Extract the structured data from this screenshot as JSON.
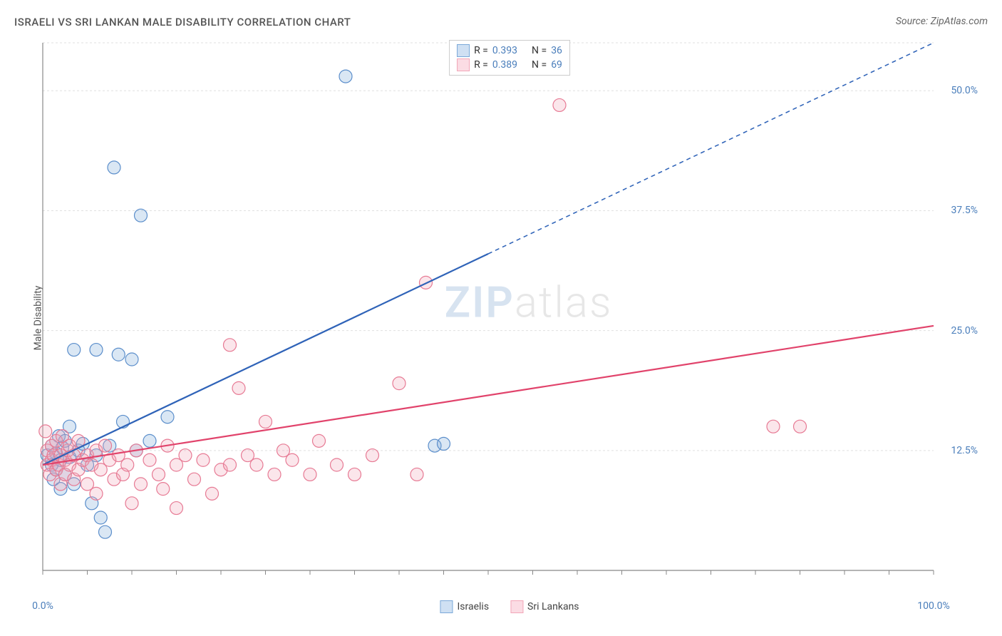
{
  "title": "ISRAELI VS SRI LANKAN MALE DISABILITY CORRELATION CHART",
  "source": "Source: ZipAtlas.com",
  "ylabel": "Male Disability",
  "watermark": {
    "part1": "ZIP",
    "part2": "atlas"
  },
  "chart": {
    "type": "scatter",
    "background_color": "#ffffff",
    "grid_color": "#e0e0e0",
    "axis_color": "#888888",
    "tick_color": "#888888",
    "xlim": [
      0,
      100
    ],
    "ylim": [
      0,
      55
    ],
    "x_tick_step": 5,
    "x_tick_labels": [
      {
        "pos": 0,
        "label": "0.0%"
      },
      {
        "pos": 100,
        "label": "100.0%"
      }
    ],
    "y_gridlines": [
      12.5,
      25.0,
      37.5,
      50.0,
      55.0
    ],
    "y_tick_labels": [
      {
        "pos": 12.5,
        "label": "12.5%"
      },
      {
        "pos": 25.0,
        "label": "25.0%"
      },
      {
        "pos": 37.5,
        "label": "37.5%"
      },
      {
        "pos": 50.0,
        "label": "50.0%"
      }
    ],
    "marker_radius": 9,
    "marker_stroke_width": 1.2,
    "marker_fill_opacity": 0.28,
    "series": [
      {
        "name": "Israelis",
        "color": "#7aa8d9",
        "stroke": "#5b8ecb",
        "trend": {
          "color": "#2f63b8",
          "solid_end_x": 50,
          "y0": 11.0,
          "y100": 55.0,
          "width": 2.2
        },
        "R": "0.393",
        "N": "36",
        "points": [
          [
            0.5,
            12.0
          ],
          [
            1.0,
            11.0
          ],
          [
            1.0,
            13.0
          ],
          [
            1.2,
            9.5
          ],
          [
            1.5,
            10.5
          ],
          [
            1.5,
            12.2
          ],
          [
            1.8,
            14.0
          ],
          [
            2.0,
            11.5
          ],
          [
            2.0,
            8.5
          ],
          [
            2.2,
            12.8
          ],
          [
            2.5,
            10.0
          ],
          [
            2.5,
            13.5
          ],
          [
            3.0,
            11.8
          ],
          [
            3.0,
            15.0
          ],
          [
            3.5,
            23.0
          ],
          [
            3.5,
            9.0
          ],
          [
            4.0,
            12.5
          ],
          [
            4.5,
            13.2
          ],
          [
            5.0,
            11.0
          ],
          [
            5.5,
            7.0
          ],
          [
            6.0,
            23.0
          ],
          [
            6.0,
            12.0
          ],
          [
            6.5,
            5.5
          ],
          [
            7.0,
            4.0
          ],
          [
            7.5,
            13.0
          ],
          [
            8.0,
            42.0
          ],
          [
            8.5,
            22.5
          ],
          [
            9.0,
            15.5
          ],
          [
            10.0,
            22.0
          ],
          [
            10.5,
            12.5
          ],
          [
            11.0,
            37.0
          ],
          [
            12.0,
            13.5
          ],
          [
            14.0,
            16.0
          ],
          [
            34.0,
            51.5
          ],
          [
            44.0,
            13.0
          ],
          [
            45.0,
            13.2
          ]
        ]
      },
      {
        "name": "Sri Lankans",
        "color": "#f2a6b8",
        "stroke": "#e77a94",
        "trend": {
          "color": "#e1436b",
          "solid_end_x": 100,
          "y0": 11.0,
          "y100": 25.5,
          "width": 2.2
        },
        "R": "0.389",
        "N": "69",
        "points": [
          [
            0.3,
            14.5
          ],
          [
            0.5,
            11.0
          ],
          [
            0.5,
            12.5
          ],
          [
            0.8,
            10.0
          ],
          [
            1.0,
            13.0
          ],
          [
            1.0,
            11.5
          ],
          [
            1.2,
            12.0
          ],
          [
            1.5,
            10.5
          ],
          [
            1.5,
            13.5
          ],
          [
            1.8,
            11.0
          ],
          [
            2.0,
            12.0
          ],
          [
            2.0,
            9.0
          ],
          [
            2.2,
            14.0
          ],
          [
            2.5,
            11.5
          ],
          [
            2.5,
            10.0
          ],
          [
            2.8,
            12.5
          ],
          [
            3.0,
            11.0
          ],
          [
            3.0,
            13.0
          ],
          [
            3.5,
            9.5
          ],
          [
            3.5,
            12.0
          ],
          [
            4.0,
            10.5
          ],
          [
            4.0,
            13.5
          ],
          [
            4.5,
            11.5
          ],
          [
            5.0,
            12.0
          ],
          [
            5.0,
            9.0
          ],
          [
            5.5,
            11.0
          ],
          [
            6.0,
            12.5
          ],
          [
            6.0,
            8.0
          ],
          [
            6.5,
            10.5
          ],
          [
            7.0,
            13.0
          ],
          [
            7.5,
            11.5
          ],
          [
            8.0,
            9.5
          ],
          [
            8.5,
            12.0
          ],
          [
            9.0,
            10.0
          ],
          [
            9.5,
            11.0
          ],
          [
            10.0,
            7.0
          ],
          [
            10.5,
            12.5
          ],
          [
            11.0,
            9.0
          ],
          [
            12.0,
            11.5
          ],
          [
            13.0,
            10.0
          ],
          [
            13.5,
            8.5
          ],
          [
            14.0,
            13.0
          ],
          [
            15.0,
            6.5
          ],
          [
            15.0,
            11.0
          ],
          [
            16.0,
            12.0
          ],
          [
            17.0,
            9.5
          ],
          [
            18.0,
            11.5
          ],
          [
            19.0,
            8.0
          ],
          [
            20.0,
            10.5
          ],
          [
            21.0,
            23.5
          ],
          [
            21.0,
            11.0
          ],
          [
            22.0,
            19.0
          ],
          [
            23.0,
            12.0
          ],
          [
            24.0,
            11.0
          ],
          [
            25.0,
            15.5
          ],
          [
            26.0,
            10.0
          ],
          [
            27.0,
            12.5
          ],
          [
            28.0,
            11.5
          ],
          [
            30.0,
            10.0
          ],
          [
            31.0,
            13.5
          ],
          [
            33.0,
            11.0
          ],
          [
            35.0,
            10.0
          ],
          [
            37.0,
            12.0
          ],
          [
            40.0,
            19.5
          ],
          [
            42.0,
            10.0
          ],
          [
            43.0,
            30.0
          ],
          [
            58.0,
            48.5
          ],
          [
            82.0,
            15.0
          ],
          [
            85.0,
            15.0
          ]
        ]
      }
    ]
  },
  "legend_top": {
    "rows": [
      {
        "swatch_fill": "#cfe0f3",
        "swatch_stroke": "#7aa8d9",
        "r_label": "R =",
        "r_val": "0.393",
        "n_label": "N =",
        "n_val": "36"
      },
      {
        "swatch_fill": "#fbdce4",
        "swatch_stroke": "#f2a6b8",
        "r_label": "R =",
        "r_val": "0.389",
        "n_label": "N =",
        "n_val": "69"
      }
    ]
  },
  "legend_bottom": {
    "items": [
      {
        "swatch_fill": "#cfe0f3",
        "swatch_stroke": "#7aa8d9",
        "label": "Israelis"
      },
      {
        "swatch_fill": "#fbdce4",
        "swatch_stroke": "#f2a6b8",
        "label": "Sri Lankans"
      }
    ]
  }
}
